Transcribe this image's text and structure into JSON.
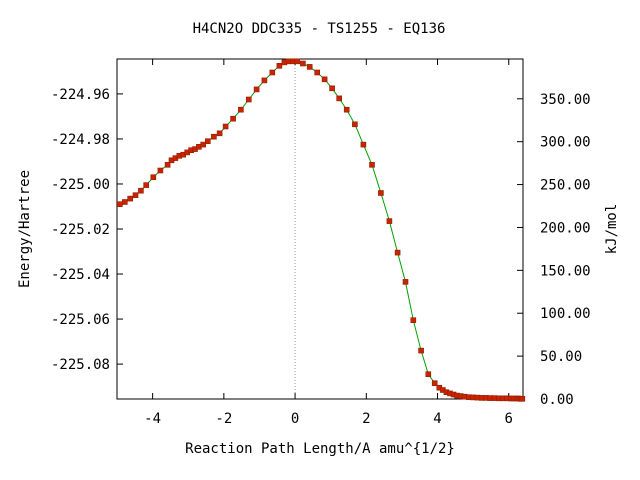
{
  "chart_data": {
    "type": "scatter",
    "title": "H4CN2O   DDC335 - TS1255 - EQ136",
    "xlabel": "Reaction Path Length/A amu^{1/2}",
    "ylabel": "Energy/Hartree",
    "y2label": "kJ/mol",
    "xlim": [
      -5.0,
      6.4
    ],
    "ylim": [
      -225.0955,
      -224.9445
    ],
    "y2lim": [
      0.0,
      396.4
    ],
    "x_ticks": [
      -4,
      -2,
      0,
      2,
      4,
      6
    ],
    "x_tick_labels": [
      "-4",
      "-2",
      "0",
      "2",
      "4",
      "6"
    ],
    "y_ticks": [
      -224.96,
      -224.98,
      -225.0,
      -225.02,
      -225.04,
      -225.06,
      -225.08
    ],
    "y_tick_labels": [
      "-224.96",
      "-224.98",
      "-225.00",
      "-225.02",
      "-225.04",
      "-225.06",
      "-225.08"
    ],
    "y2_ticks": [
      350,
      300,
      250,
      200,
      150,
      100,
      50,
      0
    ],
    "y2_tick_labels": [
      "350.00",
      "300.00",
      "250.00",
      "200.00",
      "150.00",
      "100.00",
      "50.00",
      "0.00"
    ],
    "ts_marker_x": 0,
    "grid": false,
    "line_color": "#00a000",
    "marker_color": "#cc2200",
    "vline_color": "#999999",
    "x": [
      -4.92,
      -4.78,
      -4.63,
      -4.48,
      -4.33,
      -4.18,
      -3.98,
      -3.78,
      -3.58,
      -3.47,
      -3.36,
      -3.25,
      -3.14,
      -3.03,
      -2.92,
      -2.81,
      -2.7,
      -2.58,
      -2.45,
      -2.28,
      -2.12,
      -1.95,
      -1.74,
      -1.52,
      -1.3,
      -1.08,
      -0.86,
      -0.64,
      -0.44,
      -0.3,
      -0.18,
      -0.06,
      0.06,
      0.22,
      0.41,
      0.62,
      0.83,
      1.04,
      1.24,
      1.45,
      1.68,
      1.92,
      2.16,
      2.41,
      2.65,
      2.88,
      3.1,
      3.32,
      3.54,
      3.74,
      3.92,
      4.05,
      4.15,
      4.25,
      4.35,
      4.45,
      4.55,
      4.65,
      4.76,
      4.88,
      5.0,
      5.12,
      5.24,
      5.36,
      5.48,
      5.6,
      5.72,
      5.84,
      5.96,
      6.06,
      6.14,
      6.22,
      6.28,
      6.33,
      6.38
    ],
    "y": [
      -225.009,
      -225.008,
      -225.0065,
      -225.005,
      -225.003,
      -225.0005,
      -224.997,
      -224.994,
      -224.9915,
      -224.9895,
      -224.9885,
      -224.9875,
      -224.987,
      -224.986,
      -224.985,
      -224.9845,
      -224.9835,
      -224.9825,
      -224.981,
      -224.979,
      -224.9775,
      -224.9745,
      -224.971,
      -224.967,
      -224.9625,
      -224.958,
      -224.954,
      -224.9505,
      -224.9475,
      -224.946,
      -224.9455,
      -224.9455,
      -224.9455,
      -224.9465,
      -224.948,
      -224.9505,
      -224.9535,
      -224.9575,
      -224.962,
      -224.967,
      -224.9735,
      -224.9825,
      -224.9915,
      -225.004,
      -225.0165,
      -225.0305,
      -225.0435,
      -225.0605,
      -225.074,
      -225.0845,
      -225.0885,
      -225.0905,
      -225.0915,
      -225.0925,
      -225.093,
      -225.0935,
      -225.094,
      -225.0942,
      -225.0945,
      -225.0947,
      -225.0948,
      -225.0949,
      -225.095,
      -225.095,
      -225.0951,
      -225.0951,
      -225.0952,
      -225.0952,
      -225.0952,
      -225.0953,
      -225.0953,
      -225.0953,
      -225.0953,
      -225.0954,
      -225.0954
    ]
  }
}
